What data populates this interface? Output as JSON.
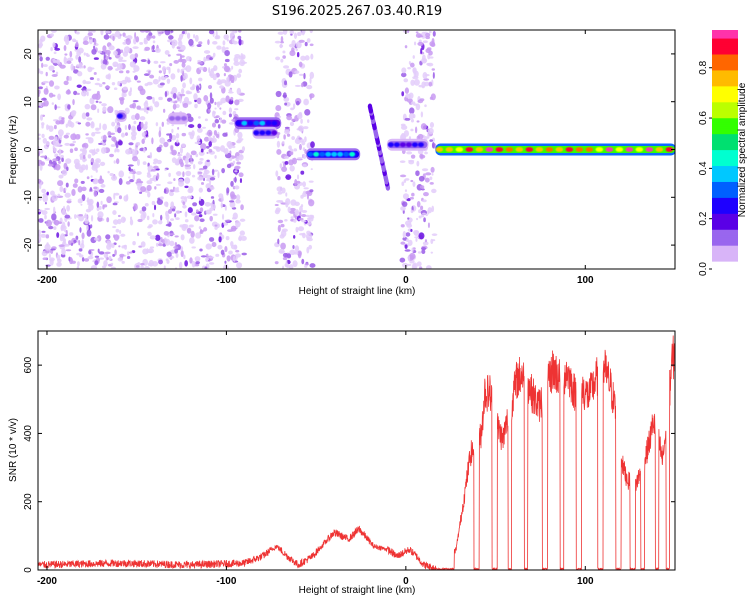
{
  "title": "S196.2025.267.03.40.R19",
  "chart_data": [
    {
      "type": "heatmap",
      "name": "spectrogram",
      "xlabel": "Height of straight line (km)",
      "ylabel": "Frequency (Hz)",
      "xlim": [
        -205,
        150
      ],
      "ylim": [
        -25,
        25
      ],
      "x_ticks": [
        -200,
        -100,
        0,
        100
      ],
      "y_ticks": [
        -20,
        -10,
        0,
        10,
        20
      ],
      "colorbar": {
        "label": "Normalized spectral amplitude",
        "range": [
          0,
          0.95
        ],
        "ticks": [
          0.0,
          0.2,
          0.4,
          0.6,
          0.8
        ],
        "tick_labels": [
          "0.0",
          "0.2",
          "0.4",
          "0.6",
          "0.8"
        ],
        "colors": [
          "#ffffff",
          "#d8b4f8",
          "#9966ee",
          "#5a00e6",
          "#1e00ff",
          "#0060ff",
          "#00c8ff",
          "#00ffd0",
          "#00e070",
          "#33ff00",
          "#bbff00",
          "#ffff00",
          "#ffbb00",
          "#ff6600",
          "#ff0033",
          "#ff33aa"
        ]
      },
      "features": [
        {
          "x": [
            -205,
            -90
          ],
          "freq": [
            -25,
            25
          ],
          "amplitude": 0.08,
          "kind": "noise"
        },
        {
          "x": [
            -72,
            -52
          ],
          "freq": [
            -25,
            25
          ],
          "amplitude": 0.06,
          "kind": "noise"
        },
        {
          "x": [
            -2,
            16
          ],
          "freq": [
            -25,
            25
          ],
          "amplitude": 0.06,
          "kind": "noise"
        },
        {
          "x": [
            -161,
            -156
          ],
          "freq": 7,
          "amplitude": 0.22
        },
        {
          "x": [
            -132,
            -122
          ],
          "freq": 6.5,
          "amplitude": 0.15
        },
        {
          "x": [
            -95,
            -70
          ],
          "freq": 5.5,
          "amplitude": 0.35
        },
        {
          "x": [
            -85,
            -72
          ],
          "freq": 3.5,
          "amplitude": 0.25
        },
        {
          "x": [
            -55,
            -26
          ],
          "freq": -1,
          "amplitude": 0.4
        },
        {
          "x": [
            -20,
            -10
          ],
          "freq": [
            -8,
            9
          ],
          "amplitude": 0.15,
          "kind": "diagonal"
        },
        {
          "x": [
            -10,
            12
          ],
          "freq": 1,
          "amplitude": 0.25
        },
        {
          "x": [
            17,
            150
          ],
          "freq": 0,
          "amplitude": 0.9
        }
      ]
    },
    {
      "type": "line",
      "name": "snr",
      "xlabel": "Height of straight line (km)",
      "ylabel": "SNR (10 * v/v)",
      "xlim": [
        -205,
        150
      ],
      "ylim": [
        0,
        700
      ],
      "x_ticks": [
        -200,
        -100,
        0,
        100
      ],
      "y_ticks": [
        0,
        200,
        400,
        600
      ],
      "color": "#ee3333",
      "series": {
        "x": [
          -205,
          -160,
          -120,
          -90,
          -80,
          -72,
          -66,
          -60,
          -52,
          -40,
          -32,
          -26,
          -18,
          -10,
          -5,
          2,
          6,
          10,
          16,
          20,
          28,
          33,
          36,
          40,
          42,
          44,
          47,
          50,
          54,
          58,
          62,
          66,
          70,
          74,
          78,
          82,
          86,
          90,
          94,
          98,
          102,
          106,
          110,
          114,
          118,
          121,
          124,
          128,
          132,
          136,
          138,
          141,
          143,
          146,
          148,
          150
        ],
        "baseline": [
          15,
          20,
          15,
          20,
          40,
          70,
          40,
          15,
          40,
          110,
          90,
          120,
          70,
          60,
          40,
          60,
          40,
          15,
          5,
          5,
          60,
          230,
          340,
          360,
          400,
          520,
          520,
          440,
          380,
          470,
          560,
          580,
          520,
          480,
          520,
          590,
          560,
          580,
          520,
          530,
          510,
          560,
          600,
          540,
          440,
          300,
          260,
          250,
          300,
          380,
          440,
          380,
          320,
          450,
          600,
          640
        ],
        "gaps": [
          [
            17,
            27
          ],
          [
            38,
            41
          ],
          [
            48,
            51
          ],
          [
            57,
            59
          ],
          [
            66,
            68
          ],
          [
            76,
            79
          ],
          [
            86,
            88
          ],
          [
            95,
            98
          ],
          [
            107,
            110
          ],
          [
            117,
            120
          ],
          [
            125,
            128
          ],
          [
            131,
            133
          ],
          [
            139,
            141
          ],
          [
            145,
            147
          ]
        ]
      }
    }
  ]
}
